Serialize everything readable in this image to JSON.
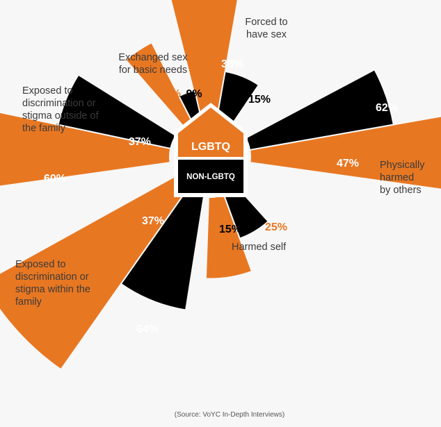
{
  "chart_data": {
    "type": "radial-bar",
    "center_labels": {
      "top": "LGBTQ",
      "bottom": "NON-LGBTQ"
    },
    "groups": [
      "LGBTQ",
      "NON-LGBTQ"
    ],
    "colors": {
      "LGBTQ": "#e87722",
      "NON-LGBTQ": "#7b1e2c",
      "background": "#f7f7f7",
      "house_outline": "#ffffff"
    },
    "categories": [
      {
        "id": "forced-sex",
        "lines": [
          "Forced to",
          "have sex"
        ],
        "LGBTQ": 38,
        "NON_LGBTQ": 15,
        "lgbtq_label": "38%",
        "non_lgbtq_label": "15%"
      },
      {
        "id": "physically-harmed",
        "lines": [
          "Physically",
          "harmed",
          "by others"
        ],
        "LGBTQ": 62,
        "NON_LGBTQ": 47,
        "lgbtq_label": "62%",
        "non_lgbtq_label": "47%"
      },
      {
        "id": "harmed-self",
        "lines": [
          "Harmed self"
        ],
        "LGBTQ": 25,
        "NON_LGBTQ": 15,
        "lgbtq_label": "25%",
        "non_lgbtq_label": "15%"
      },
      {
        "id": "discrimination-within-family",
        "lines": [
          "Exposed to",
          "discrimination or",
          "stigma within the",
          "family"
        ],
        "LGBTQ": 64,
        "NON_LGBTQ": 37,
        "lgbtq_label": "64%",
        "non_lgbtq_label": "37%"
      },
      {
        "id": "discrimination-outside-family",
        "lines": [
          "Exposed to",
          "discrimination or",
          "stigma outside of",
          "the family"
        ],
        "LGBTQ": 60,
        "NON_LGBTQ": 37,
        "lgbtq_label": "60%",
        "non_lgbtq_label": "37%"
      },
      {
        "id": "exchanged-sex",
        "lines": [
          "Exchanged sex",
          "for basic needs"
        ],
        "LGBTQ": 27,
        "NON_LGBTQ": 9,
        "lgbtq_label": "27%",
        "non_lgbtq_label": "9%"
      }
    ],
    "source": "(Source: VoYC In-Depth Interviews)"
  }
}
